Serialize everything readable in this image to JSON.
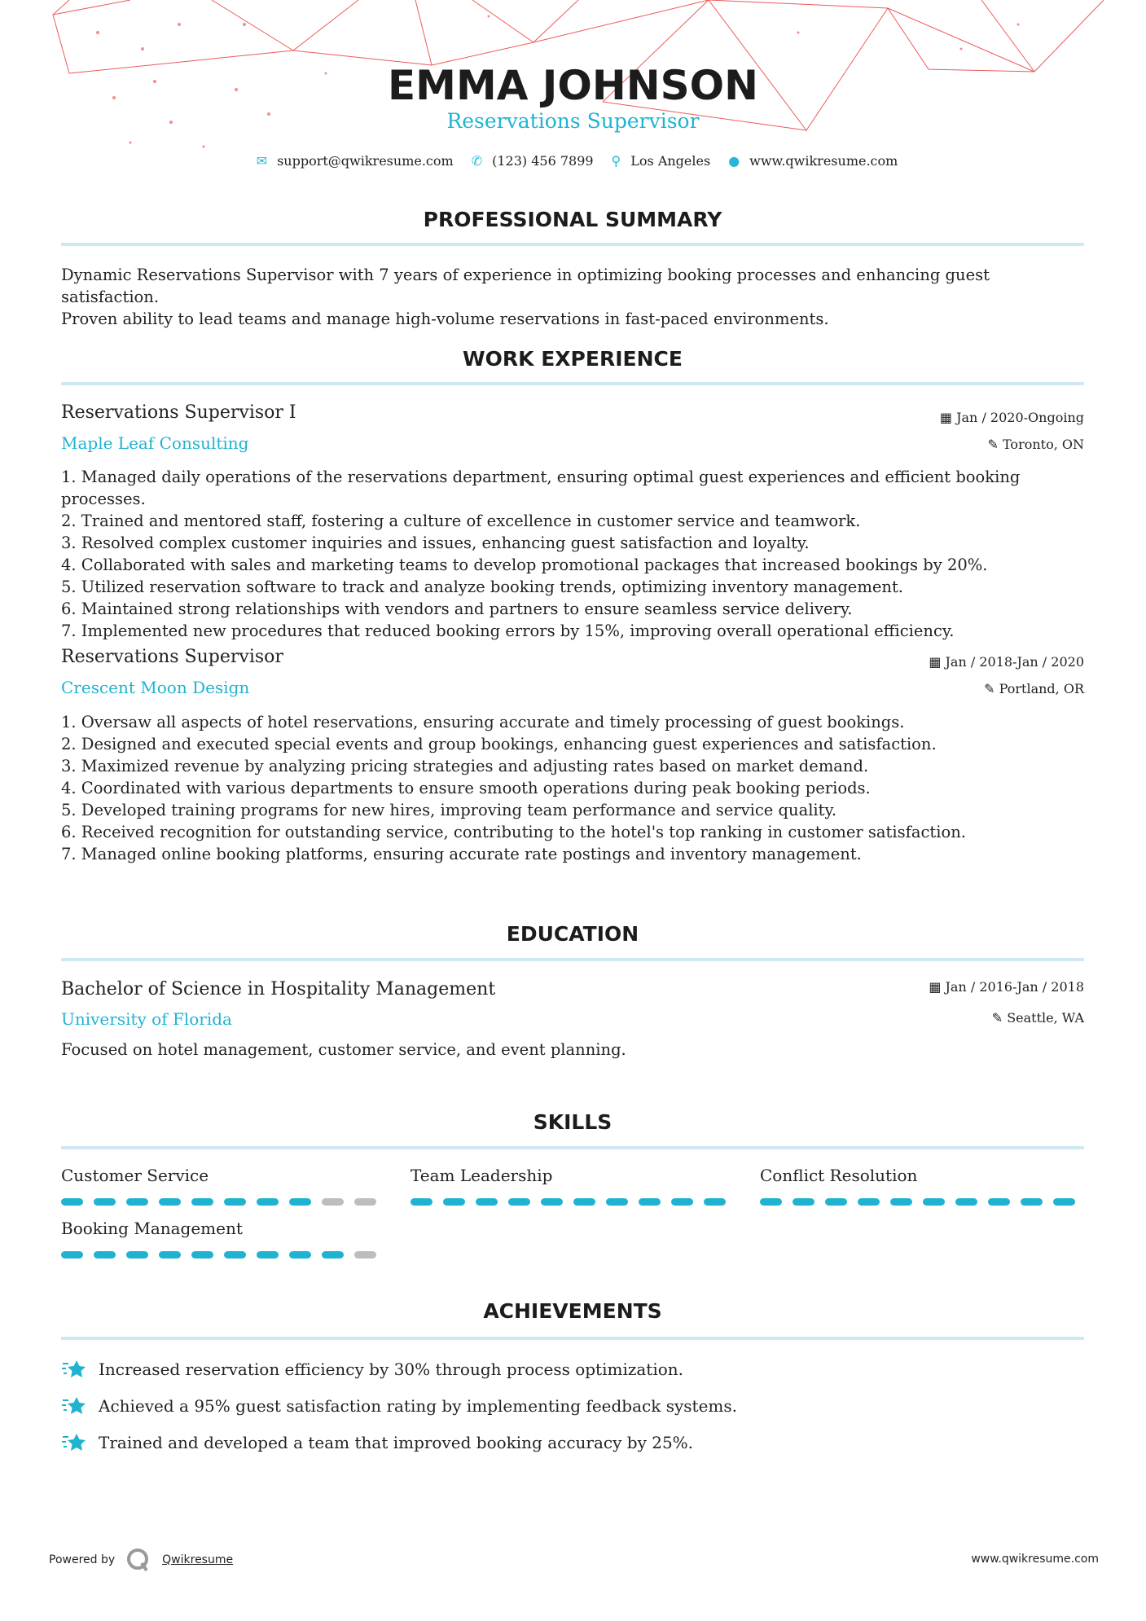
{
  "header": {
    "name": "EMMA JOHNSON",
    "title": "Reservations Supervisor",
    "contacts": [
      {
        "icon": "envelope-icon",
        "text": "support@qwikresume.com"
      },
      {
        "icon": "phone-icon",
        "text": "(123) 456 7899"
      },
      {
        "icon": "map-marker-icon",
        "text": "Los Angeles"
      },
      {
        "icon": "globe-icon",
        "text": "www.qwikresume.com"
      }
    ]
  },
  "summary": {
    "heading": "PROFESSIONAL SUMMARY",
    "lines": [
      "Dynamic Reservations Supervisor with 7 years of experience in optimizing booking processes and enhancing guest satisfaction.",
      "Proven ability to lead teams and manage high-volume reservations in fast-paced environments."
    ]
  },
  "experience": {
    "heading": "WORK EXPERIENCE",
    "jobs": [
      {
        "title": "Reservations Supervisor I",
        "company": "Maple Leaf Consulting",
        "date": "Jan / 2020-Ongoing",
        "location": "Toronto, ON",
        "bullets": [
          "1. Managed daily operations of the reservations department, ensuring optimal guest experiences and efficient booking processes.",
          "2. Trained and mentored staff, fostering a culture of excellence in customer service and teamwork.",
          "3. Resolved complex customer inquiries and issues, enhancing guest satisfaction and loyalty.",
          "4. Collaborated with sales and marketing teams to develop promotional packages that increased bookings by 20%.",
          "5. Utilized reservation software to track and analyze booking trends, optimizing inventory management.",
          "6. Maintained strong relationships with vendors and partners to ensure seamless service delivery.",
          "7. Implemented new procedures that reduced booking errors by 15%, improving overall operational efficiency."
        ]
      },
      {
        "title": "Reservations Supervisor",
        "company": "Crescent Moon Design",
        "date": "Jan / 2018-Jan / 2020",
        "location": "Portland, OR",
        "bullets": [
          "1. Oversaw all aspects of hotel reservations, ensuring accurate and timely processing of guest bookings.",
          "2. Designed and executed special events and group bookings, enhancing guest experiences and satisfaction.",
          "3. Maximized revenue by analyzing pricing strategies and adjusting rates based on market demand.",
          "4. Coordinated with various departments to ensure smooth operations during peak booking periods.",
          "5. Developed training programs for new hires, improving team performance and service quality.",
          "6. Received recognition for outstanding service, contributing to the hotel's top ranking in customer satisfaction.",
          "7. Managed online booking platforms, ensuring accurate rate postings and inventory management."
        ]
      }
    ]
  },
  "education": {
    "heading": "EDUCATION",
    "degree": "Bachelor of Science in Hospitality Management",
    "school": "University of Florida",
    "date": "Jan / 2016-Jan / 2018",
    "location": "Seattle, WA",
    "description": "Focused on hotel management, customer service, and event planning."
  },
  "skills": {
    "heading": "SKILLS",
    "items": [
      {
        "name": "Customer Service",
        "level": 8,
        "max": 10
      },
      {
        "name": "Team Leadership",
        "level": 10,
        "max": 10
      },
      {
        "name": "Conflict Resolution",
        "level": 10,
        "max": 10
      },
      {
        "name": "Booking Management",
        "level": 9,
        "max": 10
      }
    ]
  },
  "achievements": {
    "heading": "ACHIEVEMENTS",
    "items": [
      "Increased reservation efficiency by 30% through process optimization.",
      "Achieved a 95% guest satisfaction rating by implementing feedback systems.",
      "Trained and developed a team that improved booking accuracy by 25%."
    ]
  },
  "footer": {
    "powered_by": "Powered by",
    "brand": "Qwikresume",
    "website": "www.qwikresume.com"
  },
  "colors": {
    "accent": "#1fb3d1",
    "divider": "#cfe9f3",
    "decoration": "#e8312f"
  }
}
